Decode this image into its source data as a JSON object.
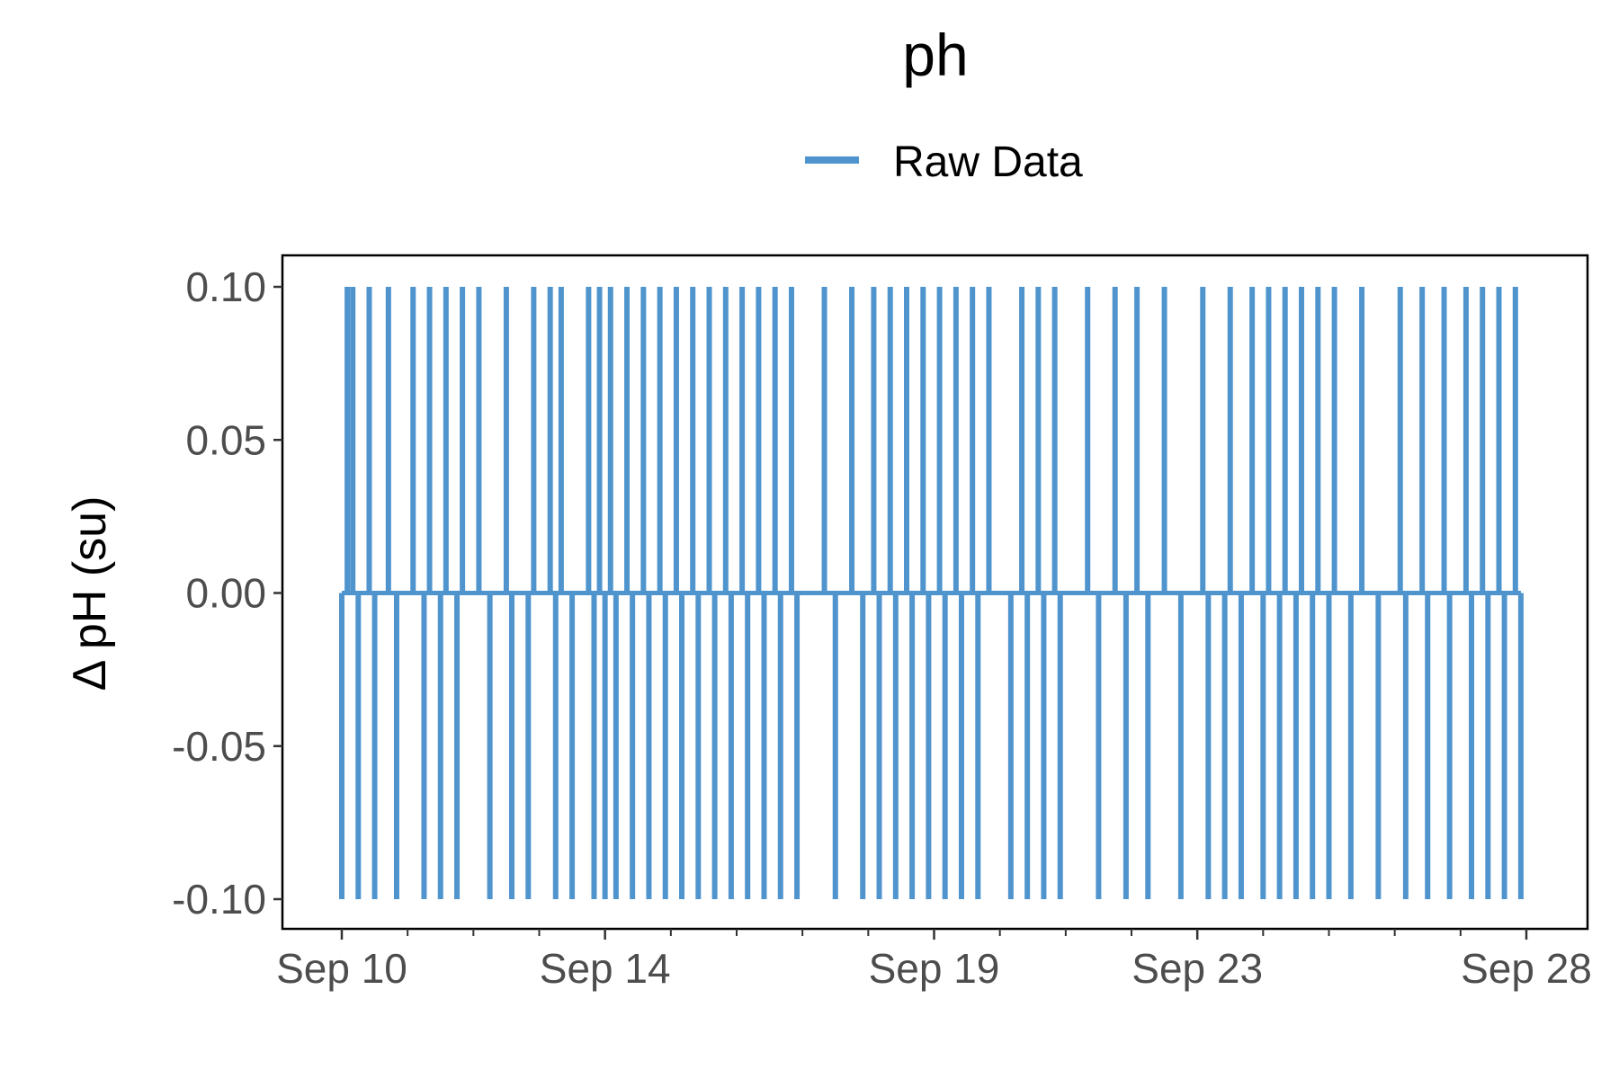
{
  "chart_data": {
    "type": "line",
    "title": "ph",
    "xlabel": "",
    "ylabel": "Δ pH (su)",
    "legend": {
      "position": "top",
      "entries": [
        "Raw Data"
      ]
    },
    "grid": false,
    "x_range": [
      "2021-09-10",
      "2021-09-28"
    ],
    "ylim": [
      -0.1,
      0.1
    ],
    "y_ticks": [
      {
        "value": -0.1,
        "label": "-0.10"
      },
      {
        "value": -0.05,
        "label": "-0.05"
      },
      {
        "value": 0,
        "label": "0.00"
      },
      {
        "value": 0.05,
        "label": "0.05"
      },
      {
        "value": 0.1,
        "label": "0.10"
      }
    ],
    "x_ticks": [
      {
        "value": "2021-09-10",
        "label": "Sep 10"
      },
      {
        "value": "2021-09-14",
        "label": "Sep 14"
      },
      {
        "value": "2021-09-19",
        "label": "Sep 19"
      },
      {
        "value": "2021-09-23",
        "label": "Sep 23"
      },
      {
        "value": "2021-09-28",
        "label": "Sep 28"
      }
    ],
    "x_minor_ticks": [
      "2021-09-11",
      "2021-09-12",
      "2021-09-13",
      "2021-09-15",
      "2021-09-16",
      "2021-09-17",
      "2021-09-18",
      "2021-09-20",
      "2021-09-21",
      "2021-09-22",
      "2021-09-24",
      "2021-09-25",
      "2021-09-26",
      "2021-09-27"
    ],
    "series": [
      {
        "name": "Raw Data",
        "color": "#4f94cd",
        "baseline": 0,
        "up_spikes_x": [
          "2021-09-10 02:00",
          "2021-09-10 04:00",
          "2021-09-10 10:00",
          "2021-09-10 17:00",
          "2021-09-11 02:00",
          "2021-09-11 08:00",
          "2021-09-11 14:00",
          "2021-09-11 20:00",
          "2021-09-12 02:00",
          "2021-09-12 12:00",
          "2021-09-12 22:00",
          "2021-09-13 04:00",
          "2021-09-13 08:00",
          "2021-09-13 18:00",
          "2021-09-13 22:00",
          "2021-09-14 02:00",
          "2021-09-14 08:00",
          "2021-09-14 14:00",
          "2021-09-14 20:00",
          "2021-09-15 02:00",
          "2021-09-15 08:00",
          "2021-09-15 14:00",
          "2021-09-15 20:00",
          "2021-09-16 02:00",
          "2021-09-16 08:00",
          "2021-09-16 14:00",
          "2021-09-16 20:00",
          "2021-09-17 08:00",
          "2021-09-17 18:00",
          "2021-09-18 02:00",
          "2021-09-18 08:00",
          "2021-09-18 14:00",
          "2021-09-18 20:00",
          "2021-09-19 02:00",
          "2021-09-19 08:00",
          "2021-09-19 14:00",
          "2021-09-19 20:00",
          "2021-09-20 08:00",
          "2021-09-20 14:00",
          "2021-09-20 20:00",
          "2021-09-21 08:00",
          "2021-09-21 18:00",
          "2021-09-22 02:00",
          "2021-09-22 12:00",
          "2021-09-23 02:00",
          "2021-09-23 12:00",
          "2021-09-23 20:00",
          "2021-09-24 02:00",
          "2021-09-24 08:00",
          "2021-09-24 14:00",
          "2021-09-24 20:00",
          "2021-09-25 02:00",
          "2021-09-25 12:00",
          "2021-09-26 02:00",
          "2021-09-26 10:00",
          "2021-09-26 18:00",
          "2021-09-27 02:00",
          "2021-09-27 08:00",
          "2021-09-27 14:00",
          "2021-09-27 20:00"
        ],
        "down_spikes_x": [
          "2021-09-10 00:00",
          "2021-09-10 06:00",
          "2021-09-10 12:00",
          "2021-09-10 20:00",
          "2021-09-11 06:00",
          "2021-09-11 12:00",
          "2021-09-11 18:00",
          "2021-09-12 06:00",
          "2021-09-12 14:00",
          "2021-09-12 20:00",
          "2021-09-13 06:00",
          "2021-09-13 12:00",
          "2021-09-13 20:00",
          "2021-09-14 00:00",
          "2021-09-14 04:00",
          "2021-09-14 10:00",
          "2021-09-14 16:00",
          "2021-09-14 22:00",
          "2021-09-15 04:00",
          "2021-09-15 10:00",
          "2021-09-15 16:00",
          "2021-09-15 22:00",
          "2021-09-16 04:00",
          "2021-09-16 10:00",
          "2021-09-16 16:00",
          "2021-09-16 22:00",
          "2021-09-17 12:00",
          "2021-09-17 22:00",
          "2021-09-18 04:00",
          "2021-09-18 10:00",
          "2021-09-18 16:00",
          "2021-09-18 22:00",
          "2021-09-19 04:00",
          "2021-09-19 10:00",
          "2021-09-19 16:00",
          "2021-09-20 04:00",
          "2021-09-20 10:00",
          "2021-09-20 16:00",
          "2021-09-20 22:00",
          "2021-09-21 12:00",
          "2021-09-21 22:00",
          "2021-09-22 06:00",
          "2021-09-22 18:00",
          "2021-09-23 04:00",
          "2021-09-23 10:00",
          "2021-09-23 16:00",
          "2021-09-24 00:00",
          "2021-09-24 06:00",
          "2021-09-24 12:00",
          "2021-09-24 18:00",
          "2021-09-25 00:00",
          "2021-09-25 08:00",
          "2021-09-25 18:00",
          "2021-09-26 04:00",
          "2021-09-26 12:00",
          "2021-09-26 20:00",
          "2021-09-27 04:00",
          "2021-09-27 10:00",
          "2021-09-27 16:00",
          "2021-09-27 22:00"
        ]
      }
    ]
  }
}
